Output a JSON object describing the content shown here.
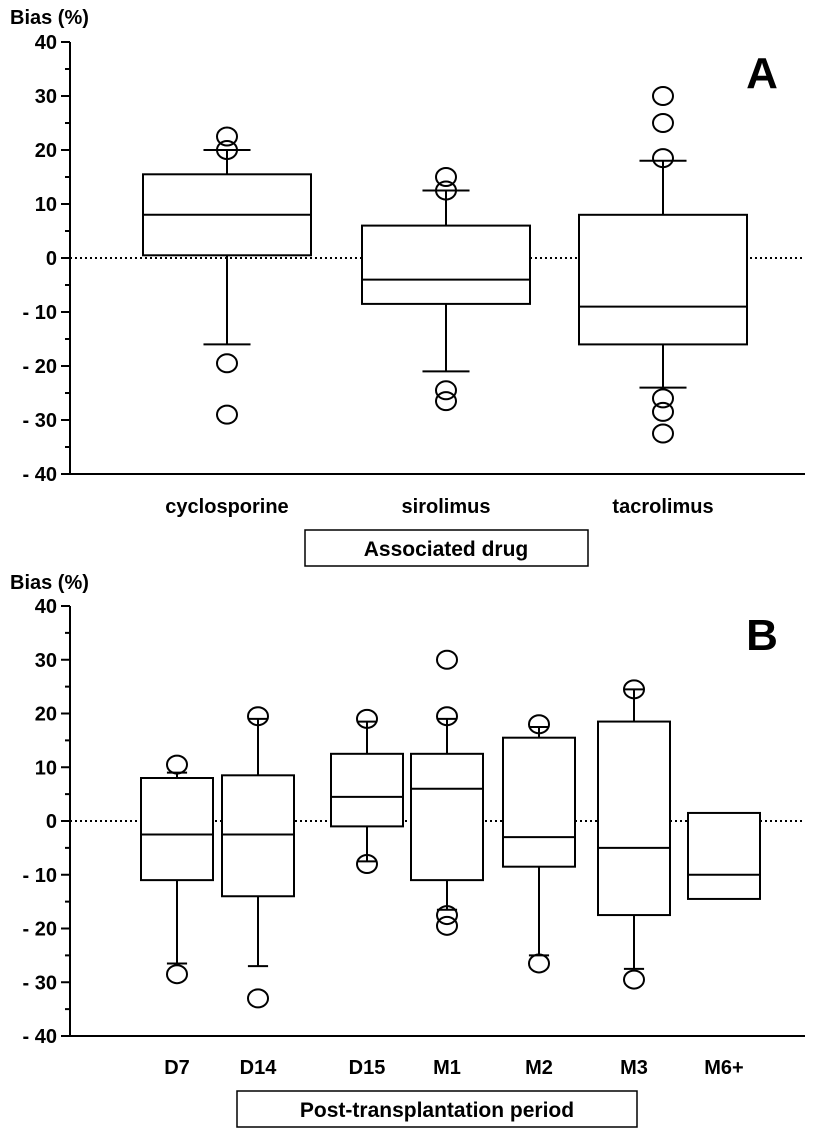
{
  "chart_data": [
    {
      "type": "box",
      "panel_label": "A",
      "ylabel": "Bias (%)",
      "xlabel": "Associated drug",
      "ylim": [
        -40,
        40
      ],
      "yticks": [
        40,
        30,
        20,
        10,
        0,
        -10,
        -20,
        -30,
        -40
      ],
      "ytick_labels": [
        "40",
        "30",
        "20",
        "10",
        "0",
        "- 10",
        "- 20",
        "- 30",
        "- 40"
      ],
      "reference_line": 0,
      "categories": [
        "cyclosporine",
        "sirolimus",
        "tacrolimus"
      ],
      "boxes": [
        {
          "q1": 0.5,
          "median": 8,
          "q3": 15.5,
          "whisker_low": -16,
          "whisker_high": 20,
          "outliers": [
            22.5,
            20,
            -19.5,
            -29
          ]
        },
        {
          "q1": -8.5,
          "median": -4,
          "q3": 6,
          "whisker_low": -21,
          "whisker_high": 12.5,
          "outliers": [
            15,
            12.5,
            -24.5,
            -26.5
          ]
        },
        {
          "q1": -16,
          "median": -9,
          "q3": 8,
          "whisker_low": -24,
          "whisker_high": 18,
          "outliers": [
            30,
            25,
            18.5,
            -26,
            -28.5,
            -32.5
          ]
        }
      ]
    },
    {
      "type": "box",
      "panel_label": "B",
      "ylabel": "Bias (%)",
      "xlabel": "Post-transplantation period",
      "ylim": [
        -40,
        40
      ],
      "yticks": [
        40,
        30,
        20,
        10,
        0,
        -10,
        -20,
        -30,
        -40
      ],
      "ytick_labels": [
        "40",
        "30",
        "20",
        "10",
        "0",
        "- 10",
        "- 20",
        "- 30",
        "- 40"
      ],
      "reference_line": 0,
      "categories": [
        "D7",
        "D14",
        "D15",
        "M1",
        "M2",
        "M3",
        "M6+"
      ],
      "boxes": [
        {
          "q1": -11,
          "median": -2.5,
          "q3": 8,
          "whisker_low": -26.5,
          "whisker_high": 9,
          "outliers": [
            10.5,
            -28.5
          ]
        },
        {
          "q1": -14,
          "median": -2.5,
          "q3": 8.5,
          "whisker_low": -27,
          "whisker_high": 19,
          "outliers": [
            19.5,
            -33
          ]
        },
        {
          "q1": -1,
          "median": 4.5,
          "q3": 12.5,
          "whisker_low": -7.5,
          "whisker_high": 18.5,
          "outliers": [
            19,
            -8
          ]
        },
        {
          "q1": -11,
          "median": 6,
          "q3": 12.5,
          "whisker_low": -16.5,
          "whisker_high": 19,
          "outliers": [
            30,
            19.5,
            -17.5,
            -19.5
          ]
        },
        {
          "q1": -8.5,
          "median": -3,
          "q3": 15.5,
          "whisker_low": -25,
          "whisker_high": 17.5,
          "outliers": [
            18,
            -26.5
          ]
        },
        {
          "q1": -17.5,
          "median": -5,
          "q3": 18.5,
          "whisker_low": -27.5,
          "whisker_high": 24.5,
          "outliers": [
            24.5,
            -29.5
          ]
        },
        {
          "q1": -14.5,
          "median": -10,
          "q3": 1.5,
          "whisker_low": -14.5,
          "whisker_high": 1.5,
          "outliers": []
        }
      ]
    }
  ]
}
